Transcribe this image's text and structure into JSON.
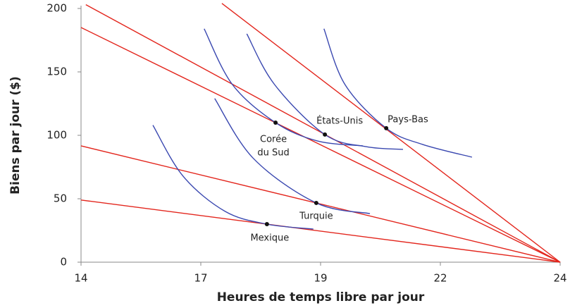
{
  "chart_data": {
    "type": "line",
    "x_label": "Heures de temps libre par jour",
    "y_label": "Biens par jour ($)",
    "xlim": [
      14,
      24
    ],
    "ylim": [
      0,
      200
    ],
    "xticks": [
      14,
      {
        "value": 16.5,
        "label": "17"
      },
      19,
      {
        "value": 21.5,
        "label": "22"
      },
      24
    ],
    "yticks": [
      0,
      50,
      100,
      150,
      200
    ],
    "series": [
      {
        "color": "#e3261d",
        "x": [
          14,
          24
        ],
        "values": [
          49,
          0
        ]
      },
      {
        "color": "#e3261d",
        "x": [
          14,
          24
        ],
        "values": [
          91.7,
          0
        ]
      },
      {
        "color": "#e3261d",
        "x": [
          14,
          24
        ],
        "values": [
          185,
          0
        ]
      },
      {
        "color": "#e3261d",
        "x": [
          14.1,
          24
        ],
        "values": [
          203,
          0
        ]
      },
      {
        "color": "#e3261d",
        "x": [
          16.94,
          24
        ],
        "values": [
          204,
          0
        ]
      },
      {
        "color": "#3a48b0",
        "x": [
          15.5,
          16.13,
          17.01,
          17.88,
          18.85
        ],
        "values": [
          108,
          67.8,
          40,
          30,
          26.1
        ]
      },
      {
        "color": "#3a48b0",
        "x": [
          16.79,
          17.6,
          18.91,
          20.03
        ],
        "values": [
          129,
          81.7,
          46.7,
          38.3
        ]
      },
      {
        "color": "#3a48b0",
        "x": [
          16.57,
          17.16,
          18.06,
          18.93,
          19.88
        ],
        "values": [
          184,
          140,
          110,
          95.6,
          91.7
        ]
      },
      {
        "color": "#3a48b0",
        "x": [
          17.46,
          18.04,
          19.09,
          19.96,
          20.72
        ],
        "values": [
          180,
          140,
          100.6,
          91,
          88.9
        ]
      },
      {
        "color": "#3a48b0",
        "x": [
          19.07,
          19.51,
          20.37,
          21.13,
          22.16
        ],
        "values": [
          184,
          140,
          105.6,
          92.8,
          82.8
        ]
      }
    ],
    "points": [
      {
        "label": [
          "Mexique"
        ],
        "x": 17.88,
        "y": 30
      },
      {
        "label": [
          "Turquie"
        ],
        "x": 18.91,
        "y": 46.7
      },
      {
        "label": [
          "Corée",
          "du Sud"
        ],
        "x": 18.06,
        "y": 110
      },
      {
        "label": [
          "États-Unis"
        ],
        "x": 19.09,
        "y": 100.6
      },
      {
        "label": [
          "Pays-Bas"
        ],
        "x": 20.37,
        "y": 105.6
      }
    ]
  }
}
